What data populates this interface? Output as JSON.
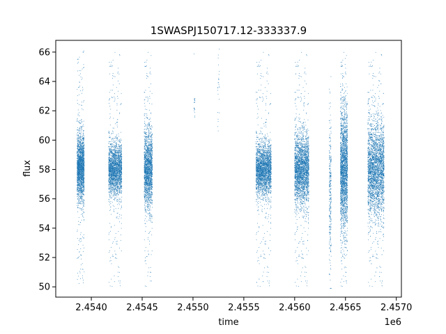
{
  "chart_data": {
    "type": "scatter",
    "title": "1SWASPJ150717.12-333337.9",
    "xlabel": "time",
    "ylabel": "flux",
    "x_offset_label": "1e6",
    "xlim": [
      2.45365,
      2.45705
    ],
    "ylim": [
      49.3,
      66.8
    ],
    "x_ticks": [
      2.454,
      2.4545,
      2.455,
      2.4555,
      2.456,
      2.4565,
      2.457
    ],
    "x_tick_labels": [
      "2.4540",
      "2.4545",
      "2.4550",
      "2.4555",
      "2.4560",
      "2.4565",
      "2.4570"
    ],
    "y_ticks": [
      50,
      52,
      54,
      56,
      58,
      60,
      62,
      64,
      66
    ],
    "y_tick_labels": [
      "50",
      "52",
      "54",
      "56",
      "58",
      "60",
      "62",
      "64",
      "66"
    ],
    "grid": false,
    "marker_color": "#1f77b4",
    "segments": [
      {
        "x_start": 2.45386,
        "x_end": 2.45393,
        "center": 58.2,
        "spread": 1.1,
        "density": 2200
      },
      {
        "x_start": 2.45417,
        "x_end": 2.4543,
        "center": 58.0,
        "spread": 0.9,
        "density": 2400
      },
      {
        "x_start": 2.45452,
        "x_end": 2.4546,
        "center": 58.0,
        "spread": 1.3,
        "density": 2000
      },
      {
        "x_start": 2.45501,
        "x_end": 2.45502,
        "center": 62.3,
        "spread": 0.4,
        "density": 20
      },
      {
        "x_start": 2.45524,
        "x_end": 2.45526,
        "center": 63.5,
        "spread": 1.5,
        "density": 25
      },
      {
        "x_start": 2.45562,
        "x_end": 2.45577,
        "center": 58.0,
        "spread": 0.9,
        "density": 2800
      },
      {
        "x_start": 2.456,
        "x_end": 2.45614,
        "center": 58.0,
        "spread": 1.2,
        "density": 3000
      },
      {
        "x_start": 2.45634,
        "x_end": 2.45636,
        "center": 56.5,
        "spread": 2.5,
        "density": 300
      },
      {
        "x_start": 2.45645,
        "x_end": 2.45652,
        "center": 58.0,
        "spread": 2.0,
        "density": 2400
      },
      {
        "x_start": 2.45672,
        "x_end": 2.45688,
        "center": 58.0,
        "spread": 1.6,
        "density": 3600
      }
    ]
  }
}
